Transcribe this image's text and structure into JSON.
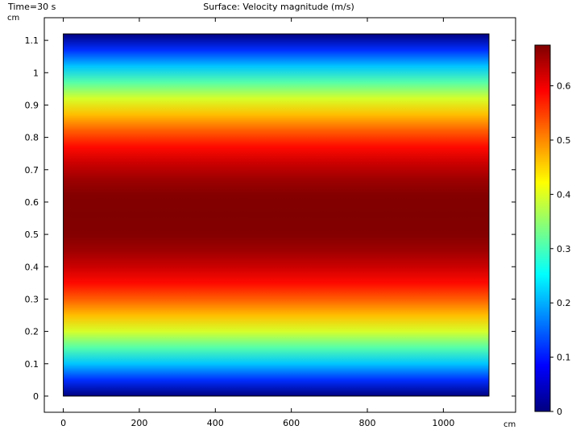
{
  "chart_data": {
    "type": "heatmap",
    "header_left": "Time=30 s",
    "title": "Surface: Velocity magnitude (m/s)",
    "x_unit": "cm",
    "y_unit": "cm",
    "xlim": [
      -50,
      1190
    ],
    "ylim": [
      -0.05,
      1.17
    ],
    "domain_x": [
      0,
      1120
    ],
    "domain_y": [
      0,
      1.12
    ],
    "x_ticks": [
      0,
      200,
      400,
      600,
      800,
      1000
    ],
    "y_ticks": [
      0,
      0.1,
      0.2,
      0.3,
      0.4,
      0.5,
      0.6,
      0.7,
      0.8,
      0.9,
      1,
      1.1
    ],
    "colorbar": {
      "min": 0,
      "max": 0.675,
      "ticks": [
        0,
        0.1,
        0.2,
        0.3,
        0.4,
        0.5,
        0.6
      ],
      "colormap": "jet"
    },
    "profile": {
      "description": "velocity magnitude varies only with y (parabolic), max at y=0.56",
      "y": [
        0,
        0.05,
        0.1,
        0.15,
        0.2,
        0.25,
        0.3,
        0.35,
        0.4,
        0.45,
        0.5,
        0.56,
        0.62,
        0.67,
        0.72,
        0.77,
        0.82,
        0.87,
        0.92,
        0.97,
        1.02,
        1.07,
        1.12
      ],
      "value": [
        0.0,
        0.115,
        0.215,
        0.31,
        0.395,
        0.465,
        0.53,
        0.585,
        0.625,
        0.655,
        0.672,
        0.675,
        0.672,
        0.655,
        0.625,
        0.585,
        0.53,
        0.465,
        0.395,
        0.31,
        0.215,
        0.115,
        0.0
      ]
    }
  }
}
